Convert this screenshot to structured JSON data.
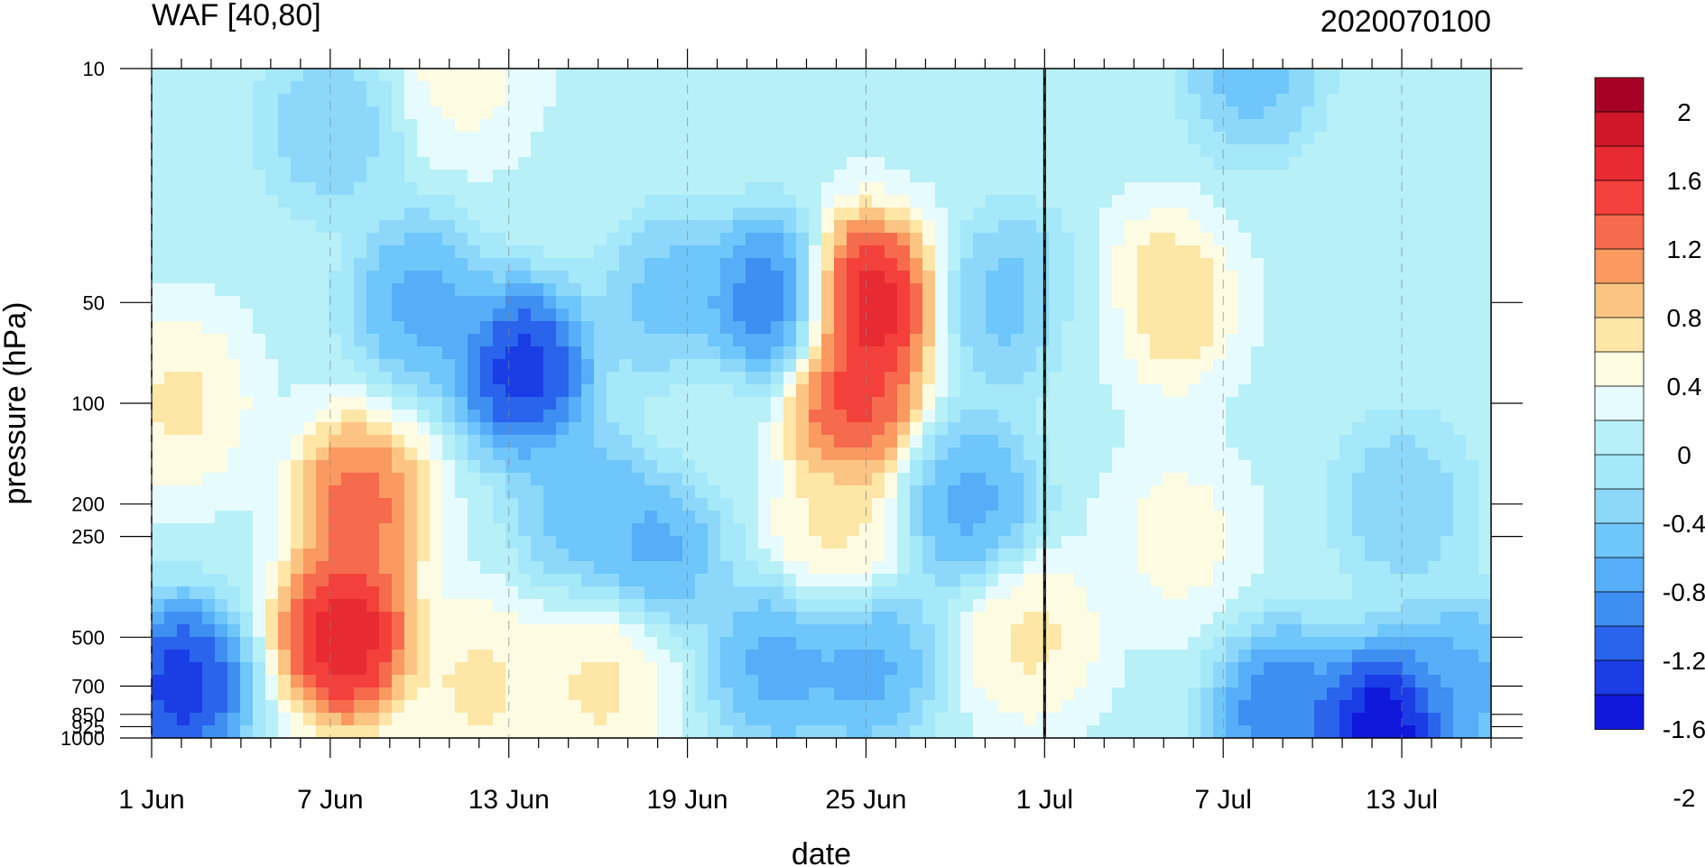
{
  "chart_data": {
    "type": "heatmap",
    "title": "WAF [40,80]",
    "title_right": "2020070100",
    "xlabel": "date",
    "ylabel": "pressure (hPa)",
    "x": {
      "start_date": "2020-06-01",
      "ndays": 46,
      "labeled_dates": [
        "2020-06-01",
        "2020-06-07",
        "2020-06-13",
        "2020-06-19",
        "2020-06-25",
        "2020-07-01",
        "2020-07-07",
        "2020-07-13"
      ]
    },
    "x_ticks": [
      "1 Jun",
      "7 Jun",
      "13 Jun",
      "19 Jun",
      "25 Jun",
      "1 Jul",
      "7 Jul",
      "13 Jul"
    ],
    "y_scale": "log",
    "y_ticks": [
      "10",
      "50",
      "100",
      "200",
      "250",
      "500",
      "700",
      "850",
      "925",
      "1000"
    ],
    "ylim": [
      1000,
      10
    ],
    "colorbar": {
      "levels": [
        -2.2,
        -2.0,
        -1.8,
        -1.6,
        -1.4,
        -1.2,
        -1.0,
        -0.8,
        -0.6,
        -0.4,
        -0.2,
        0,
        0.2,
        0.4,
        0.6,
        0.8,
        1.0,
        1.2,
        1.4,
        1.6,
        1.8,
        2.0,
        2.2
      ],
      "labels": [
        "2",
        "1.6",
        "1.2",
        "0.8",
        "0.4",
        "0",
        "-0.4",
        "-0.8",
        "-1.2",
        "-1.6",
        "-2"
      ],
      "colors_top_to_bottom": [
        "#a50026",
        "#d01629",
        "#e82a33",
        "#f4403a",
        "#f66a4e",
        "#fa9a60",
        "#fcc483",
        "#fde6a6",
        "#fefbe3",
        "#e6fbfe",
        "#b8f0f8",
        "#a4e8f9",
        "#8dd8fa",
        "#6ec6fa",
        "#56aef8",
        "#3f8ef2",
        "#2a63ec",
        "#1a3de6",
        "#1018dc"
      ]
    },
    "note_line": "2020-07-01",
    "features": [
      {
        "day": 6.5,
        "p": 500,
        "value": 2.0
      },
      {
        "day": 7.0,
        "p": 200,
        "value": 1.4
      },
      {
        "day": 24.0,
        "p": 50,
        "value": 2.0
      },
      {
        "day": 23.5,
        "p": 100,
        "value": 1.6
      },
      {
        "day": 1.0,
        "p": 100,
        "value": 0.6
      },
      {
        "day": 10.5,
        "p": 10,
        "value": 0.4
      },
      {
        "day": 11.0,
        "p": 700,
        "value": 0.6
      },
      {
        "day": 15.0,
        "p": 700,
        "value": 0.6
      },
      {
        "day": 29.5,
        "p": 500,
        "value": 0.6
      },
      {
        "day": 34.0,
        "p": 50,
        "value": 0.8
      },
      {
        "day": 34.5,
        "p": 250,
        "value": 0.4
      },
      {
        "day": 23.0,
        "p": 250,
        "value": 0.6
      },
      {
        "day": 1.0,
        "p": 700,
        "value": -1.8
      },
      {
        "day": 12.5,
        "p": 80,
        "value": -1.8
      },
      {
        "day": 20.8,
        "p": 50,
        "value": -1.4
      },
      {
        "day": 17.5,
        "p": 50,
        "value": -0.8
      },
      {
        "day": 9.0,
        "p": 50,
        "value": -1.0
      },
      {
        "day": 29.0,
        "p": 50,
        "value": -0.8
      },
      {
        "day": 17.0,
        "p": 250,
        "value": -1.0
      },
      {
        "day": 14.5,
        "p": 200,
        "value": -0.8
      },
      {
        "day": 27.5,
        "p": 200,
        "value": -1.0
      },
      {
        "day": 21.0,
        "p": 600,
        "value": -1.0
      },
      {
        "day": 24.0,
        "p": 600,
        "value": -1.0
      },
      {
        "day": 41.5,
        "p": 950,
        "value": -2.2
      },
      {
        "day": 38.0,
        "p": 850,
        "value": -1.4
      },
      {
        "day": 44.0,
        "p": 700,
        "value": -1.0
      },
      {
        "day": 42.0,
        "p": 50,
        "value": 0.0
      },
      {
        "day": 42.0,
        "p": 200,
        "value": -0.6
      },
      {
        "day": 37.0,
        "p": 10,
        "value": -0.8
      },
      {
        "day": 18.5,
        "p": 120,
        "value": 0.0
      },
      {
        "day": 6.0,
        "p": 15,
        "value": -0.6
      },
      {
        "day": 31.5,
        "p": 60,
        "value": 0.0
      }
    ]
  }
}
